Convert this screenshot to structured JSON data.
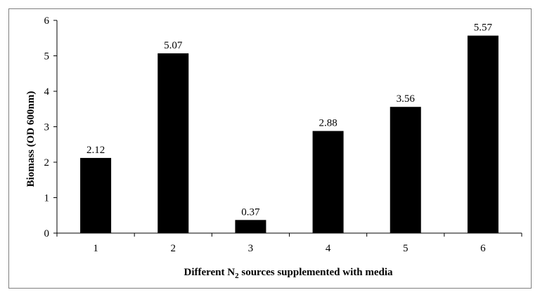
{
  "chart_data": {
    "type": "bar",
    "categories": [
      "1",
      "2",
      "3",
      "4",
      "5",
      "6"
    ],
    "values": [
      2.12,
      5.07,
      0.37,
      2.88,
      3.56,
      5.57
    ],
    "data_labels": [
      "2.12",
      "5.07",
      "0.37",
      "2.88",
      "3.56",
      "5.57"
    ],
    "title": "",
    "xlabel": {
      "prefix": "Different N",
      "subscript": "2",
      "suffix": " sources supplemented with media"
    },
    "ylabel": "Biomass (OD 600nm)",
    "ylim": [
      0,
      6
    ],
    "yticks": [
      "0",
      "1",
      "2",
      "3",
      "4",
      "5",
      "6"
    ],
    "grid": false,
    "legend": "none",
    "bar_color": "#000000"
  }
}
